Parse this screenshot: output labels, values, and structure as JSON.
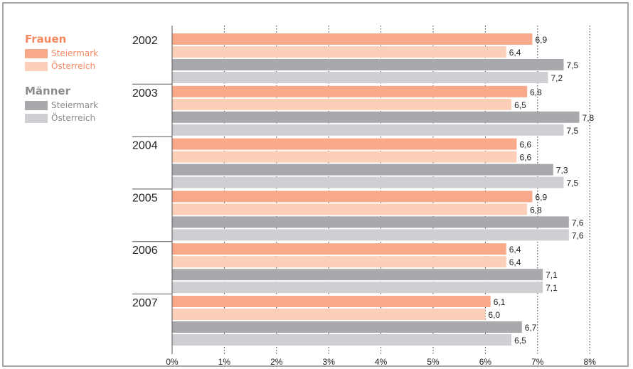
{
  "colors": {
    "frauen_steiermark": "#f7a98a",
    "frauen_oesterreich": "#fccfb9",
    "maenner_steiermark": "#a8a8ad",
    "maenner_oesterreich": "#cfcfd3",
    "frauen_heading": "#f58a62",
    "maenner_heading": "#8c8c8c",
    "frame": "#a6a6a6"
  },
  "legend": {
    "groups": [
      {
        "title": "Frauen",
        "items": [
          {
            "label": "Steiermark"
          },
          {
            "label": "Österreich"
          }
        ]
      },
      {
        "title": "Männer",
        "items": [
          {
            "label": "Steiermark"
          },
          {
            "label": "Österreich"
          }
        ]
      }
    ]
  },
  "chart_data": {
    "type": "bar",
    "orientation": "horizontal",
    "categories": [
      "2002",
      "2003",
      "2004",
      "2005",
      "2006",
      "2007"
    ],
    "series": [
      {
        "name": "Frauen Steiermark",
        "values": [
          6.9,
          6.8,
          6.6,
          6.9,
          6.4,
          6.1
        ]
      },
      {
        "name": "Frauen Österreich",
        "values": [
          6.4,
          6.5,
          6.6,
          6.8,
          6.4,
          6.0
        ]
      },
      {
        "name": "Männer Steiermark",
        "values": [
          7.5,
          7.8,
          7.3,
          7.6,
          7.1,
          6.7
        ]
      },
      {
        "name": "Männer Österreich",
        "values": [
          7.2,
          7.5,
          7.5,
          7.6,
          7.1,
          6.5
        ]
      }
    ],
    "value_labels": [
      [
        "6,9",
        "6,8",
        "6,6",
        "6,9",
        "6,4",
        "6,1"
      ],
      [
        "6,4",
        "6,5",
        "6,6",
        "6,8",
        "6,4",
        "6,0"
      ],
      [
        "7,5",
        "7,8",
        "7,3",
        "7,6",
        "7,1",
        "6,7"
      ],
      [
        "7,2",
        "7,5",
        "7,5",
        "7,6",
        "7,1",
        "6,5"
      ]
    ],
    "xlim": [
      0,
      8
    ],
    "xticks": [
      0,
      1,
      2,
      3,
      4,
      5,
      6,
      7,
      8
    ],
    "xtick_labels": [
      "0%",
      "1%",
      "2%",
      "3%",
      "4%",
      "5%",
      "6%",
      "7%",
      "8%"
    ],
    "grid": "vertical dotted",
    "legend_position": "top-left"
  }
}
